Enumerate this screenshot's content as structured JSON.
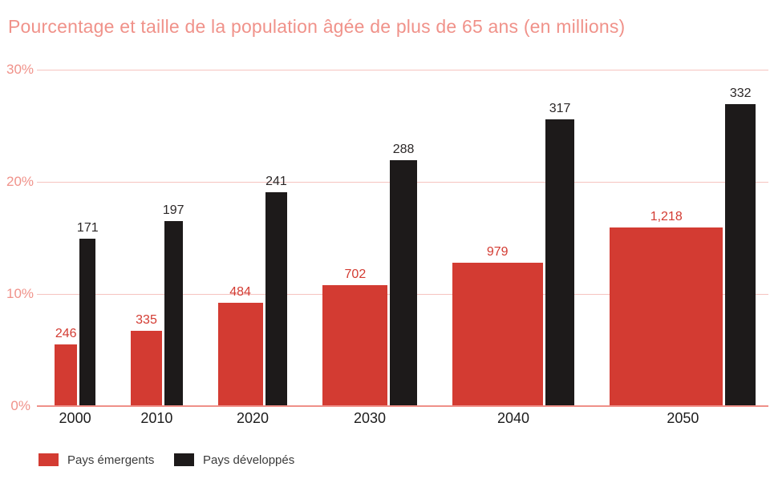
{
  "chart_data": {
    "type": "bar",
    "title": "Pourcentage et taille de la population âgée de plus de 65 ans (en millions)",
    "categories": [
      "2000",
      "2010",
      "2020",
      "2030",
      "2040",
      "2050"
    ],
    "y_axis": {
      "label": "",
      "unit": "%",
      "range_pct": [
        0,
        30
      ],
      "ticks": [
        {
          "label": "30%",
          "pct": 30
        },
        {
          "label": "20%",
          "pct": 20
        },
        {
          "label": "10%",
          "pct": 10
        },
        {
          "label": "0%",
          "pct": 0
        }
      ]
    },
    "grid": "horizontal",
    "legend_position": "bottom-left",
    "series": [
      {
        "name": "Pays émergents",
        "key": "emergents",
        "color": "#d33b32",
        "label_color": "#d33b32",
        "values_millions": [
          246,
          335,
          484,
          702,
          979,
          1218
        ],
        "value_labels": [
          "246",
          "335",
          "484",
          "702",
          "979",
          "1,218"
        ],
        "pct_over_65": [
          5.5,
          6.7,
          9.2,
          10.8,
          12.8,
          15.9
        ]
      },
      {
        "name": "Pays développés",
        "key": "developpes",
        "color": "#1d1a1a",
        "label_color": "#2b2727",
        "values_millions": [
          171,
          197,
          241,
          288,
          317,
          332
        ],
        "value_labels": [
          "171",
          "197",
          "241",
          "288",
          "317",
          "332"
        ],
        "pct_over_65": [
          14.9,
          16.5,
          19.1,
          21.9,
          25.6,
          26.9
        ]
      }
    ]
  },
  "colors": {
    "title_salmon": "#f0928a",
    "axis_label_salmon": "#f0928a",
    "gridline_pink": "#f6c3bf",
    "baseline_salmon": "#ef9089",
    "year_label_dark": "#1c1c1c",
    "legend_text": "#3b3b3b",
    "background": "#ffffff"
  }
}
